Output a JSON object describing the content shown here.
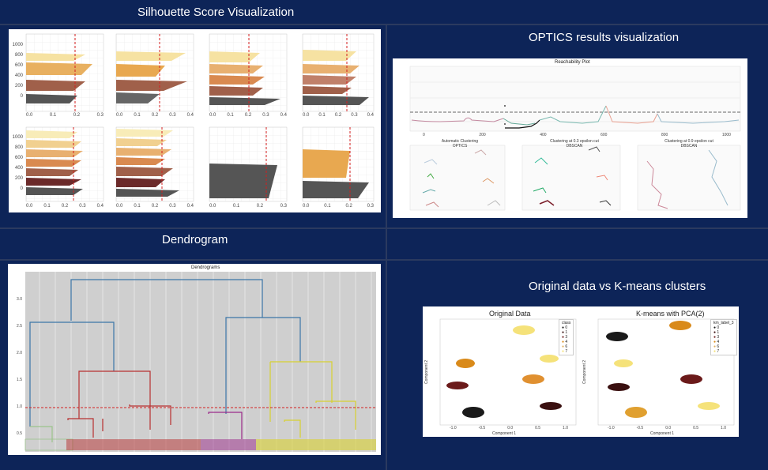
{
  "titles": {
    "silhouette": "Silhouette Score Visualization",
    "optics": "OPTICS results visualization",
    "dendrogram": "Dendrogram",
    "kmeans": "Original data vs K-means clusters"
  },
  "silhouette": {
    "yticks_small": [
      "0",
      "200",
      "400",
      "600",
      "800",
      "1000"
    ],
    "yticks_large": [
      "0",
      "200",
      "400",
      "600",
      "800",
      "1000",
      "1200"
    ],
    "xticks_a": [
      "0.0",
      "0.1",
      "0.2",
      "0.3"
    ],
    "xticks_b": [
      "0.0",
      "0.1",
      "0.2",
      "0.3",
      "0.4"
    ],
    "xticks_c": [
      "0.0",
      "0.1",
      "0.2",
      "0.3",
      "0.4"
    ],
    "xticks_d": [
      "0.0",
      "0.1",
      "0.2",
      "0.3",
      "0.4"
    ],
    "xticks_e": [
      "0.0",
      "0.1",
      "0.2",
      "0.3",
      "0.4"
    ],
    "xticks_f": [
      "0.0",
      "0.1",
      "0.2",
      "0.3",
      "0.4"
    ],
    "xticks_g": [
      "0.0",
      "0.1",
      "0.2",
      "0.3"
    ],
    "xticks_h": [
      "0.0",
      "0.1",
      "0.2",
      "0.3"
    ]
  },
  "optics": {
    "reach_title": "Reachability Plot",
    "reach_ylabel": "Reachability (epsilon distance)",
    "reach_xticks": [
      "0",
      "200",
      "400",
      "600",
      "800",
      "1000"
    ],
    "reach_yticks": [
      "0.2",
      "0.4",
      "0.6",
      "0.8"
    ],
    "sub1_title": "Automatic Clustering",
    "sub1_sub": "OPTICS",
    "sub2_title": "Clustering at 0.3 epsilon cut",
    "sub2_sub": "DBSCAN",
    "sub3_title": "Clustering at 0.9 epsilon cut",
    "sub3_sub": "DBSCAN",
    "sub_xticks": [
      "-1.0",
      "-0.5",
      "0.0",
      "0.5",
      "1.0"
    ],
    "sub_yticks": [
      "1.0",
      "0.5",
      "0.0",
      "-0.5",
      "-1.0"
    ]
  },
  "dendrogram": {
    "title": "Dendrograms",
    "yticks": [
      "0.0",
      "0.5",
      "1.0",
      "1.5",
      "2.0",
      "2.5",
      "3.0"
    ]
  },
  "kmeans": {
    "left_title": "Original Data",
    "right_title": "K-means with PCA(2)",
    "xlabel": "Component 1",
    "ylabel": "Component 2",
    "xticks": [
      "-1.0",
      "-0.5",
      "0.0",
      "0.5",
      "1.0"
    ],
    "yticks": [
      "1.0",
      "0.5",
      "0.0",
      "-0.5",
      "-1.0"
    ],
    "legend_left_title": "class",
    "legend_left": [
      "0",
      "1",
      "3",
      "4",
      "6",
      "7"
    ],
    "legend_right_title": "km_label_3",
    "legend_right": [
      "0",
      "1",
      "3",
      "4",
      "6",
      "7"
    ]
  },
  "colors": {
    "background": "#0d2458",
    "cluster_black": "#1a1a1a",
    "cluster_darkred": "#6b1a1a",
    "cluster_orange": "#d98a1a",
    "cluster_yellow": "#f5e27a",
    "dendro_blue": "#3b76a8",
    "dendro_red": "#b83030",
    "dendro_purple": "#9b2a8a",
    "dendro_yellow": "#d8d030",
    "dendro_green": "#9bc38a",
    "cut_line": "#d42020"
  }
}
